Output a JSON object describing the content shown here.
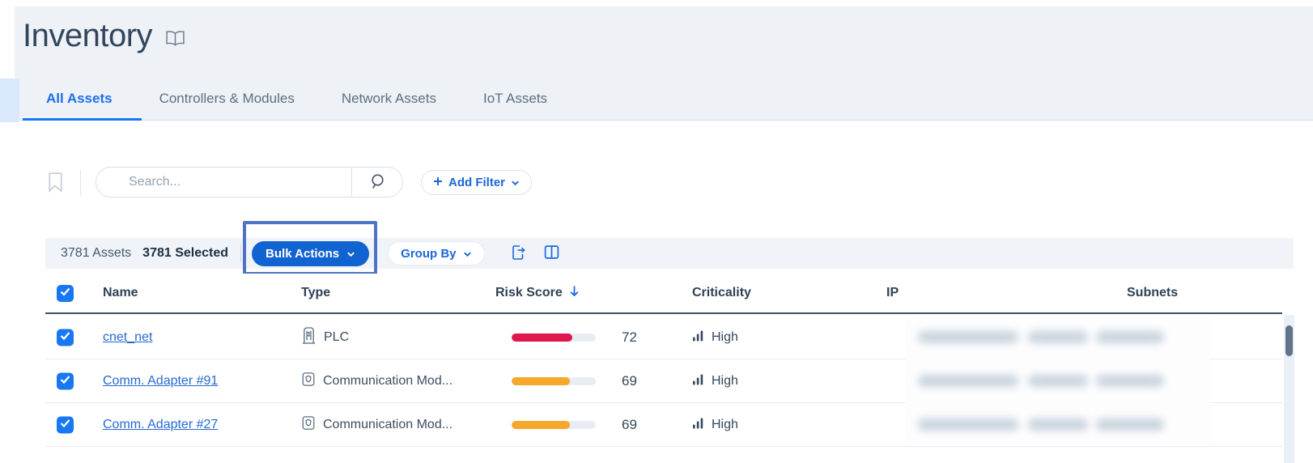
{
  "page": {
    "title": "Inventory"
  },
  "tabs": {
    "items": [
      {
        "label": "All Assets",
        "active": true
      },
      {
        "label": "Controllers & Modules",
        "active": false
      },
      {
        "label": "Network Assets",
        "active": false
      },
      {
        "label": "IoT Assets",
        "active": false
      }
    ]
  },
  "search": {
    "placeholder": "Search..."
  },
  "filters": {
    "add_filter_label": "Add Filter"
  },
  "toolbar": {
    "assets_count": "3781 Assets",
    "selected_count": "3781 Selected",
    "bulk_actions_label": "Bulk Actions",
    "group_by_label": "Group By"
  },
  "table": {
    "columns": {
      "name": "Name",
      "type": "Type",
      "risk_score": "Risk Score",
      "criticality": "Criticality",
      "ip": "IP",
      "subnets": "Subnets"
    },
    "sort": {
      "column": "Risk Score",
      "direction": "desc"
    },
    "rows": [
      {
        "selected": true,
        "name": "cnet_net",
        "type": "PLC",
        "type_icon": "plc",
        "risk_score": 72,
        "risk_color": "#e0164e",
        "criticality": "High",
        "ip": "redacted",
        "subnets": "redacted"
      },
      {
        "selected": true,
        "name": "Comm. Adapter #91",
        "type": "Communication Mod...",
        "type_icon": "communication-module",
        "risk_score": 69,
        "risk_color": "#f6a82c",
        "criticality": "High",
        "ip": "redacted",
        "subnets": "redacted"
      },
      {
        "selected": true,
        "name": "Comm. Adapter #27",
        "type": "Communication Mod...",
        "type_icon": "communication-module",
        "risk_score": 69,
        "risk_color": "#f6a82c",
        "criticality": "High",
        "ip": "redacted",
        "subnets": "redacted"
      }
    ]
  },
  "icons": {
    "open-book-icon": "open book outline next to title",
    "bookmark-icon": "saved-filters bookmark",
    "magnifier-icon": "search magnifier",
    "plus-icon": "add filter plus",
    "chevron-down-icon": "dropdown chevron",
    "export-icon": "export document with arrow",
    "columns-icon": "column layout toggle",
    "checkbox-check-icon": "white checkmark",
    "sort-desc-icon": "blue down arrow",
    "plc-icon": "controller cabinet outline",
    "communication-module-icon": "module with shield outline",
    "criticality-bars-icon": "three ascending bars"
  },
  "colors": {
    "accent_blue": "#1a6ff0",
    "button_blue": "#1263d2",
    "link_blue": "#2569d3",
    "risk_high_red": "#e0164e",
    "risk_medium_orange": "#f6a82c",
    "header_bg": "#eef2f7",
    "toolbar_bg": "#f0f4f8",
    "annotation_blue": "#4d73c6",
    "dark_text": "#31465c"
  }
}
